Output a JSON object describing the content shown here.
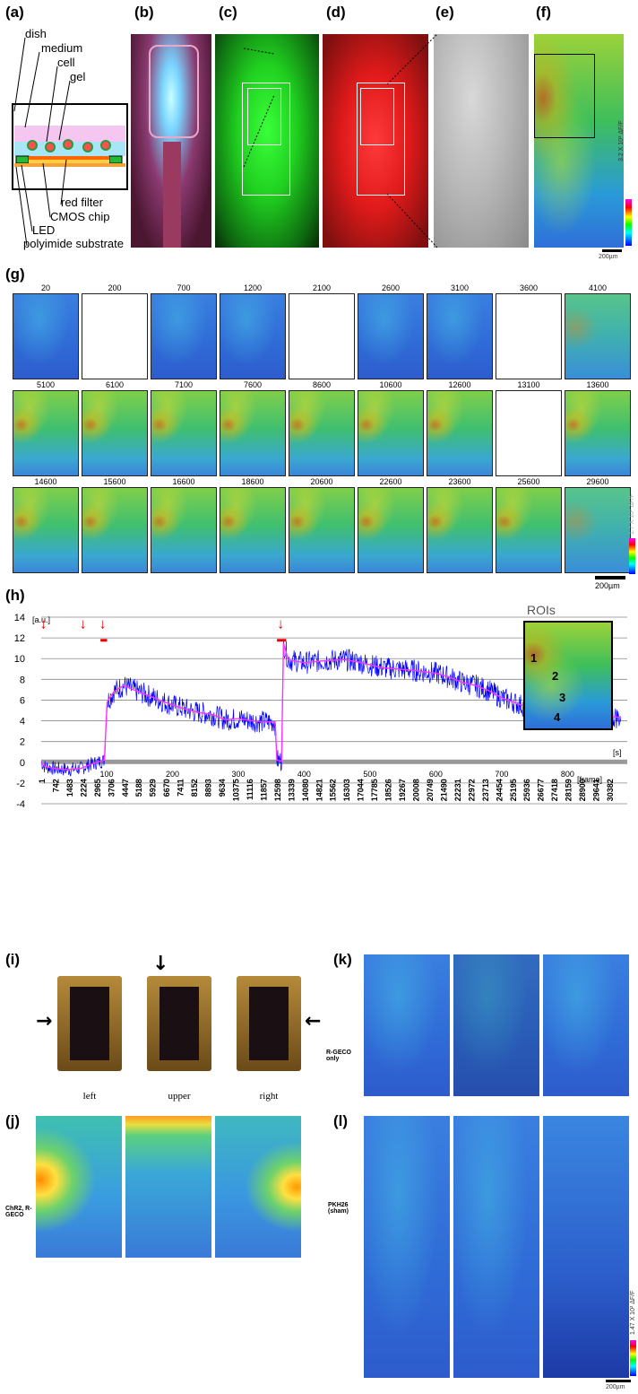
{
  "labels": {
    "a": "(a)",
    "b": "(b)",
    "c": "(c)",
    "d": "(d)",
    "e": "(e)",
    "f": "(f)",
    "g": "(g)",
    "h": "(h)",
    "i": "(i)",
    "j": "(j)",
    "k": "(k)",
    "l": "(l)"
  },
  "schematic": {
    "dish": "dish",
    "medium": "medium",
    "cell": "cell",
    "gel": "gel",
    "red_filter": "red filter",
    "cmos_chip": "CMOS chip",
    "led": "LED",
    "polyimide": "polyimide substrate"
  },
  "scalebars": {
    "f": "200µm",
    "g": "200µm",
    "l": "200µm"
  },
  "colorbar_labels": {
    "f": "3.2 X 10² ΔF/F",
    "g": "1.7 X 10² ΔF/F",
    "l": "1.47 X 10² ΔF/F"
  },
  "g_tiles": [
    {
      "t": "20",
      "kind": "blue"
    },
    {
      "t": "200",
      "kind": "white"
    },
    {
      "t": "700",
      "kind": "blue"
    },
    {
      "t": "1200",
      "kind": "blue"
    },
    {
      "t": "2100",
      "kind": "white"
    },
    {
      "t": "2600",
      "kind": "blue"
    },
    {
      "t": "3100",
      "kind": "blue"
    },
    {
      "t": "3600",
      "kind": "white"
    },
    {
      "t": "4100",
      "kind": "teal"
    },
    {
      "t": "5100",
      "kind": "green"
    },
    {
      "t": "6100",
      "kind": "green"
    },
    {
      "t": "7100",
      "kind": "green"
    },
    {
      "t": "7600",
      "kind": "green"
    },
    {
      "t": "8600",
      "kind": "green"
    },
    {
      "t": "10600",
      "kind": "green"
    },
    {
      "t": "12600",
      "kind": "green"
    },
    {
      "t": "13100",
      "kind": "white"
    },
    {
      "t": "13600",
      "kind": "green"
    },
    {
      "t": "14600",
      "kind": "green"
    },
    {
      "t": "15600",
      "kind": "green"
    },
    {
      "t": "16600",
      "kind": "green"
    },
    {
      "t": "18600",
      "kind": "green"
    },
    {
      "t": "20600",
      "kind": "green"
    },
    {
      "t": "22600",
      "kind": "green"
    },
    {
      "t": "23600",
      "kind": "green"
    },
    {
      "t": "25600",
      "kind": "green"
    },
    {
      "t": "29600",
      "kind": "teal"
    }
  ],
  "chart_data": {
    "type": "line",
    "ylabel": "[a.u.]",
    "x_unit_label": "[s]",
    "frame_label": "[frame]",
    "ylim": [
      -4,
      14
    ],
    "yticks": [
      -4,
      -2,
      0,
      2,
      4,
      6,
      8,
      10,
      12,
      14
    ],
    "xlim": [
      0,
      890
    ],
    "xticks_s": [
      100,
      200,
      300,
      400,
      500,
      600,
      700,
      800
    ],
    "frame_ticks": [
      "1",
      "742",
      "1483",
      "2224",
      "2965",
      "3706",
      "4447",
      "5188",
      "5929",
      "6670",
      "7411",
      "8152",
      "8893",
      "9634",
      "10375",
      "11116",
      "11857",
      "12598",
      "13339",
      "14080",
      "14821",
      "15562",
      "16303",
      "17044",
      "17785",
      "18526",
      "19267",
      "20008",
      "20749",
      "21490",
      "22231",
      "22972",
      "23713",
      "24454",
      "25195",
      "25936",
      "26677",
      "27418",
      "28159",
      "28900",
      "29641",
      "30382"
    ],
    "stimulus_times_s": [
      5,
      65,
      95,
      365
    ],
    "stimulus_bars_s": [
      [
        90,
        100
      ],
      [
        358,
        372
      ]
    ],
    "series": [
      {
        "points": [
          [
            0,
            0
          ],
          [
            5,
            -0.4
          ],
          [
            20,
            -0.6
          ],
          [
            40,
            -0.7
          ],
          [
            60,
            -0.6
          ],
          [
            75,
            -0.2
          ],
          [
            90,
            0.1
          ],
          [
            96,
            0.2
          ],
          [
            100,
            5.8
          ],
          [
            110,
            6.8
          ],
          [
            125,
            7.4
          ],
          [
            140,
            7.0
          ],
          [
            160,
            6.5
          ],
          [
            180,
            6.0
          ],
          [
            200,
            5.5
          ],
          [
            220,
            5.1
          ],
          [
            240,
            4.8
          ],
          [
            260,
            4.6
          ],
          [
            280,
            4.1
          ],
          [
            300,
            4.2
          ],
          [
            320,
            4.0
          ],
          [
            340,
            3.9
          ],
          [
            355,
            3.9
          ],
          [
            358,
            0.2
          ],
          [
            365,
            0.1
          ],
          [
            368,
            11.5
          ],
          [
            375,
            9.9
          ],
          [
            400,
            9.6
          ],
          [
            430,
            9.8
          ],
          [
            460,
            9.9
          ],
          [
            480,
            9.7
          ],
          [
            500,
            9.4
          ],
          [
            520,
            9.1
          ],
          [
            560,
            8.9
          ],
          [
            600,
            8.6
          ],
          [
            620,
            8.2
          ],
          [
            640,
            7.7
          ],
          [
            660,
            7.4
          ],
          [
            680,
            6.9
          ],
          [
            700,
            6.2
          ],
          [
            730,
            5.5
          ],
          [
            760,
            5.2
          ],
          [
            800,
            5.0
          ],
          [
            840,
            4.6
          ],
          [
            880,
            4.3
          ]
        ]
      }
    ]
  },
  "roi": {
    "title": "ROIs",
    "markers": [
      "1",
      "2",
      "3",
      "4"
    ]
  },
  "i_captions": [
    "left",
    "upper",
    "right"
  ],
  "row_labels": {
    "k": "R-GECO only",
    "j": "ChR2, R-GECO",
    "l": "PKH26 (sham)"
  },
  "colors": {
    "raw_trace": "#0000ff",
    "mean_trace": "#ff33ff",
    "stim_marker": "#ee0000"
  }
}
